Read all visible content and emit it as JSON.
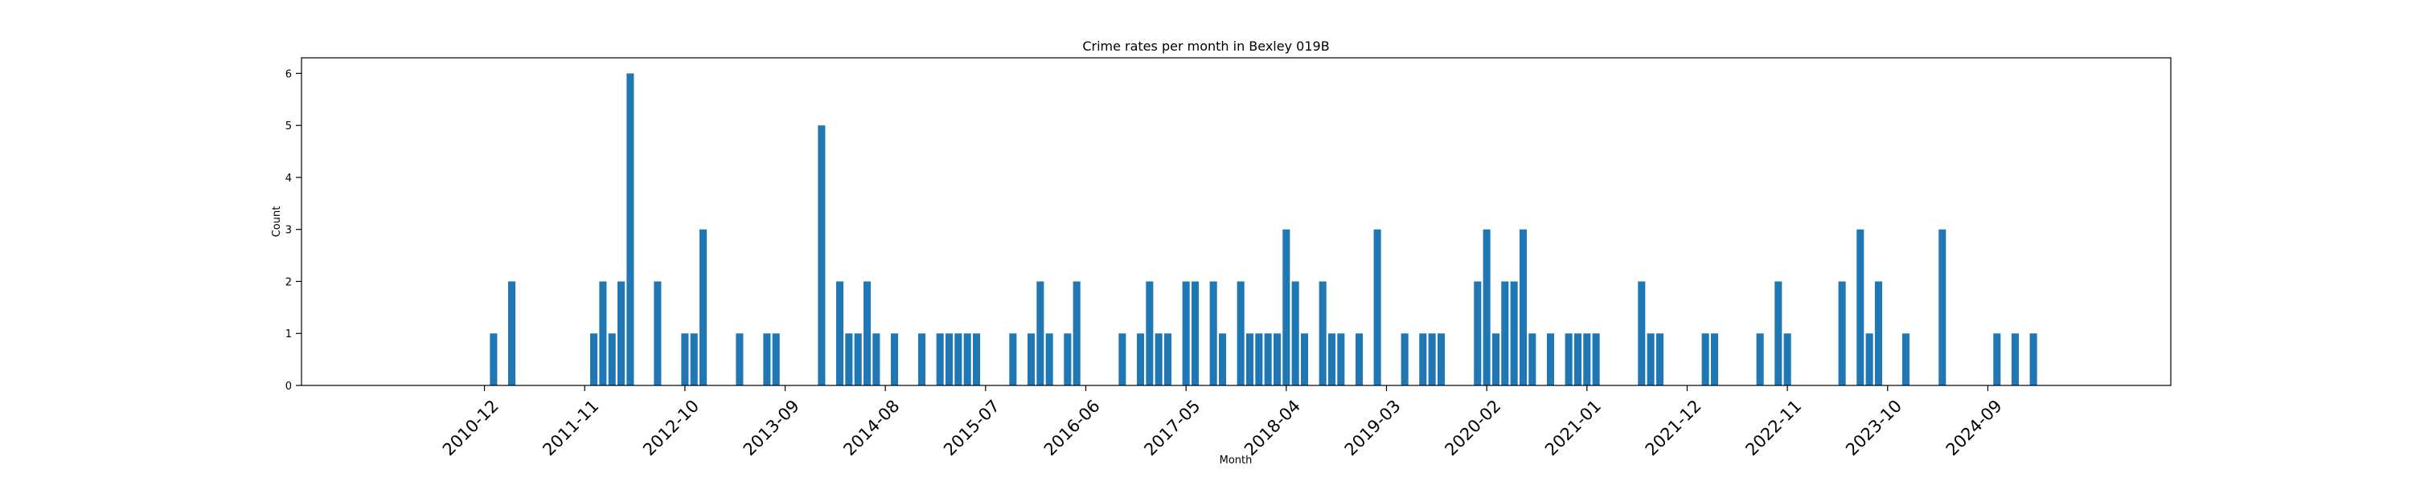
{
  "chart_data": {
    "type": "bar",
    "title": "Crime rates per month in Bexley 019B",
    "xlabel": "Month",
    "ylabel": "Count",
    "ylim": [
      0,
      6.3
    ],
    "yticks": [
      0,
      1,
      2,
      3,
      4,
      5,
      6
    ],
    "xticks": [
      "2010-12",
      "2011-11",
      "2012-10",
      "2013-09",
      "2014-08",
      "2015-07",
      "2016-06",
      "2017-05",
      "2018-04",
      "2019-03",
      "2020-02",
      "2021-01",
      "2021-12",
      "2022-11",
      "2023-10",
      "2024-09"
    ],
    "grid": false,
    "color": "#1f77b4",
    "series": [
      {
        "points": [
          [
            "2011-01",
            1
          ],
          [
            "2011-03",
            2
          ],
          [
            "2011-12",
            1
          ],
          [
            "2012-01",
            2
          ],
          [
            "2012-02",
            1
          ],
          [
            "2012-03",
            2
          ],
          [
            "2012-04",
            6
          ],
          [
            "2012-07",
            2
          ],
          [
            "2012-10",
            1
          ],
          [
            "2012-11",
            1
          ],
          [
            "2012-12",
            3
          ],
          [
            "2013-04",
            1
          ],
          [
            "2013-07",
            1
          ],
          [
            "2013-08",
            1
          ],
          [
            "2014-01",
            5
          ],
          [
            "2014-03",
            2
          ],
          [
            "2014-04",
            1
          ],
          [
            "2014-05",
            1
          ],
          [
            "2014-06",
            2
          ],
          [
            "2014-07",
            1
          ],
          [
            "2014-09",
            1
          ],
          [
            "2014-12",
            1
          ],
          [
            "2015-02",
            1
          ],
          [
            "2015-03",
            1
          ],
          [
            "2015-04",
            1
          ],
          [
            "2015-05",
            1
          ],
          [
            "2015-06",
            1
          ],
          [
            "2015-10",
            1
          ],
          [
            "2015-12",
            1
          ],
          [
            "2016-01",
            2
          ],
          [
            "2016-02",
            1
          ],
          [
            "2016-04",
            1
          ],
          [
            "2016-05",
            2
          ],
          [
            "2016-10",
            1
          ],
          [
            "2016-12",
            1
          ],
          [
            "2017-01",
            2
          ],
          [
            "2017-02",
            1
          ],
          [
            "2017-03",
            1
          ],
          [
            "2017-05",
            2
          ],
          [
            "2017-06",
            2
          ],
          [
            "2017-08",
            2
          ],
          [
            "2017-09",
            1
          ],
          [
            "2017-11",
            2
          ],
          [
            "2017-12",
            1
          ],
          [
            "2018-01",
            1
          ],
          [
            "2018-02",
            1
          ],
          [
            "2018-03",
            1
          ],
          [
            "2018-04",
            3
          ],
          [
            "2018-05",
            2
          ],
          [
            "2018-06",
            1
          ],
          [
            "2018-08",
            2
          ],
          [
            "2018-09",
            1
          ],
          [
            "2018-10",
            1
          ],
          [
            "2018-12",
            1
          ],
          [
            "2019-02",
            3
          ],
          [
            "2019-05",
            1
          ],
          [
            "2019-07",
            1
          ],
          [
            "2019-08",
            1
          ],
          [
            "2019-09",
            1
          ],
          [
            "2020-01",
            2
          ],
          [
            "2020-02",
            3
          ],
          [
            "2020-03",
            1
          ],
          [
            "2020-04",
            2
          ],
          [
            "2020-05",
            2
          ],
          [
            "2020-06",
            3
          ],
          [
            "2020-07",
            1
          ],
          [
            "2020-09",
            1
          ],
          [
            "2020-11",
            1
          ],
          [
            "2020-12",
            1
          ],
          [
            "2021-01",
            1
          ],
          [
            "2021-02",
            1
          ],
          [
            "2021-07",
            2
          ],
          [
            "2021-08",
            1
          ],
          [
            "2021-09",
            1
          ],
          [
            "2022-02",
            1
          ],
          [
            "2022-03",
            1
          ],
          [
            "2022-08",
            1
          ],
          [
            "2022-10",
            2
          ],
          [
            "2022-11",
            1
          ],
          [
            "2023-05",
            2
          ],
          [
            "2023-07",
            3
          ],
          [
            "2023-08",
            1
          ],
          [
            "2023-09",
            2
          ],
          [
            "2023-12",
            1
          ],
          [
            "2024-04",
            3
          ],
          [
            "2024-10",
            1
          ],
          [
            "2024-12",
            1
          ],
          [
            "2025-02",
            1
          ]
        ]
      }
    ]
  }
}
